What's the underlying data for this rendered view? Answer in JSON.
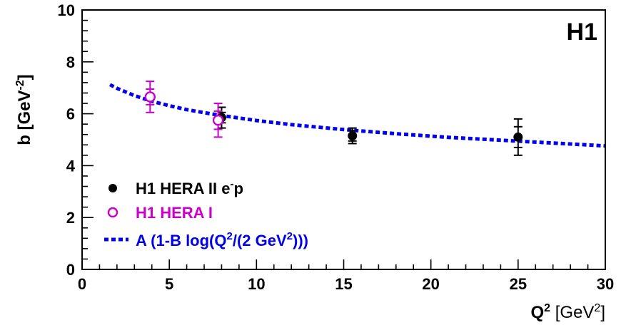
{
  "experiment_badge": "H1",
  "colors": {
    "hera2": "#000000",
    "hera1": "#cc00cc",
    "fit": "#0000ee"
  },
  "chart_data": {
    "type": "scatter",
    "xlabel": {
      "base": "Q",
      "sup": "2",
      "unit_open": " [GeV",
      "unit_sup": "2",
      "unit_close": "]"
    },
    "ylabel": {
      "base": "b [GeV",
      "sup": "-2",
      "close": "]"
    },
    "xlim": [
      0,
      30
    ],
    "ylim": [
      0,
      10
    ],
    "x_ticks": [
      0,
      5,
      10,
      15,
      20,
      25,
      30
    ],
    "y_ticks": [
      0,
      2,
      4,
      6,
      8,
      10
    ],
    "grid": false,
    "legend_position": "bottom-left",
    "series": [
      {
        "name": "H1 HERA II e",
        "name_sup": "-",
        "name_tail": "p",
        "marker": "filled-circle",
        "points": [
          {
            "x": 8.0,
            "y": 5.85,
            "stat": 0.2,
            "tot": 0.4
          },
          {
            "x": 15.5,
            "y": 5.15,
            "stat": 0.2,
            "tot": 0.3
          },
          {
            "x": 25.0,
            "y": 5.1,
            "stat": 0.4,
            "tot": 0.7
          }
        ]
      },
      {
        "name": "H1 HERA I",
        "marker": "open-circle",
        "points": [
          {
            "x": 3.9,
            "y": 6.65,
            "stat": 0.3,
            "tot": 0.6
          },
          {
            "x": 7.8,
            "y": 5.75,
            "stat": 0.35,
            "tot": 0.65
          }
        ]
      }
    ],
    "fit": {
      "label": {
        "a": "A (1-B log(Q",
        "b": "2",
        "c": "/(2 GeV",
        "d": "2",
        "e": ")))"
      },
      "style": "dotted",
      "points": [
        {
          "x": 1.6,
          "y": 7.12
        },
        {
          "x": 2.0,
          "y": 6.98
        },
        {
          "x": 3.0,
          "y": 6.7
        },
        {
          "x": 4.0,
          "y": 6.48
        },
        {
          "x": 5.0,
          "y": 6.31
        },
        {
          "x": 6.0,
          "y": 6.16
        },
        {
          "x": 7.0,
          "y": 6.04
        },
        {
          "x": 8.0,
          "y": 5.93
        },
        {
          "x": 10.0,
          "y": 5.74
        },
        {
          "x": 12.0,
          "y": 5.58
        },
        {
          "x": 15.0,
          "y": 5.39
        },
        {
          "x": 18.0,
          "y": 5.23
        },
        {
          "x": 21.0,
          "y": 5.09
        },
        {
          "x": 24.0,
          "y": 4.98
        },
        {
          "x": 27.0,
          "y": 4.87
        },
        {
          "x": 30.0,
          "y": 4.76
        }
      ]
    }
  }
}
